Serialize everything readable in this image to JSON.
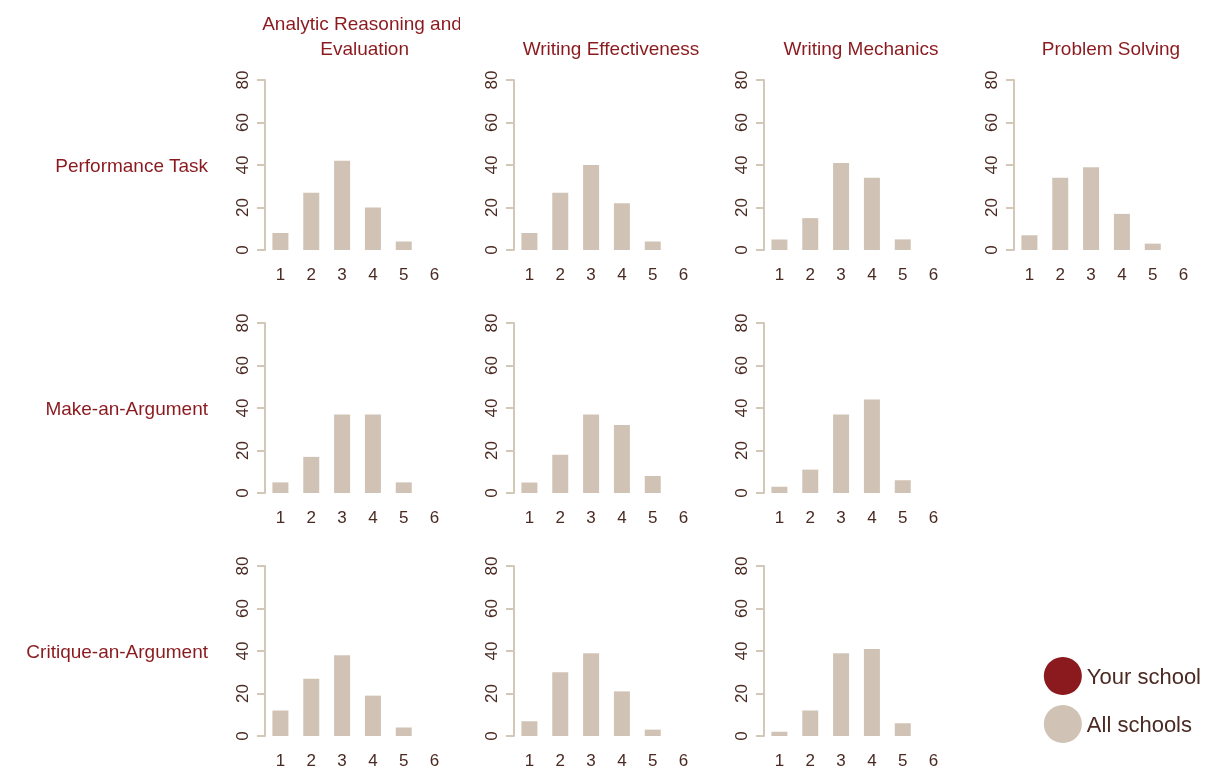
{
  "chart_data": [
    {
      "type": "bar",
      "title": "Analytic Reasoning and Evaluation",
      "ylabel": "Performance Task",
      "categories": [
        "1",
        "2",
        "3",
        "4",
        "5",
        "6"
      ],
      "values": [
        8,
        27,
        42,
        20,
        4,
        0
      ],
      "color": "#d0c3b5",
      "ylim": [
        0,
        80
      ],
      "yticks": [
        0,
        20,
        40,
        60,
        80
      ],
      "grid": false,
      "legend": false
    },
    {
      "type": "bar",
      "title": "Writing Effectiveness",
      "categories": [
        "1",
        "2",
        "3",
        "4",
        "5",
        "6"
      ],
      "values": [
        8,
        27,
        40,
        22,
        4,
        0
      ],
      "color": "#d0c3b5",
      "ylim": [
        0,
        80
      ],
      "yticks": [
        0,
        20,
        40,
        60,
        80
      ],
      "grid": false,
      "legend": false
    },
    {
      "type": "bar",
      "title": "Writing Mechanics",
      "categories": [
        "1",
        "2",
        "3",
        "4",
        "5",
        "6"
      ],
      "values": [
        5,
        15,
        41,
        34,
        5,
        0
      ],
      "color": "#d0c3b5",
      "ylim": [
        0,
        80
      ],
      "yticks": [
        0,
        20,
        40,
        60,
        80
      ],
      "grid": false,
      "legend": false
    },
    {
      "type": "bar",
      "title": "Problem Solving",
      "categories": [
        "1",
        "2",
        "3",
        "4",
        "5",
        "6"
      ],
      "values": [
        7,
        34,
        39,
        17,
        3,
        0
      ],
      "color": "#d0c3b5",
      "ylim": [
        0,
        80
      ],
      "yticks": [
        0,
        20,
        40,
        60,
        80
      ],
      "grid": false,
      "legend": false
    },
    {
      "type": "bar",
      "ylabel": "Make-an-Argument",
      "categories": [
        "1",
        "2",
        "3",
        "4",
        "5",
        "6"
      ],
      "values": [
        5,
        17,
        37,
        37,
        5,
        0
      ],
      "color": "#d0c3b5",
      "ylim": [
        0,
        80
      ],
      "yticks": [
        0,
        20,
        40,
        60,
        80
      ],
      "grid": false,
      "legend": false
    },
    {
      "type": "bar",
      "categories": [
        "1",
        "2",
        "3",
        "4",
        "5",
        "6"
      ],
      "values": [
        5,
        18,
        37,
        32,
        8,
        0
      ],
      "color": "#d0c3b5",
      "ylim": [
        0,
        80
      ],
      "yticks": [
        0,
        20,
        40,
        60,
        80
      ],
      "grid": false,
      "legend": false
    },
    {
      "type": "bar",
      "categories": [
        "1",
        "2",
        "3",
        "4",
        "5",
        "6"
      ],
      "values": [
        3,
        11,
        37,
        44,
        6,
        0
      ],
      "color": "#d0c3b5",
      "ylim": [
        0,
        80
      ],
      "yticks": [
        0,
        20,
        40,
        60,
        80
      ],
      "grid": false,
      "legend": false
    },
    {
      "type": "bar",
      "ylabel": "Critique-an-Argument",
      "categories": [
        "1",
        "2",
        "3",
        "4",
        "5",
        "6"
      ],
      "values": [
        12,
        27,
        38,
        19,
        4,
        0
      ],
      "color": "#d0c3b5",
      "ylim": [
        0,
        80
      ],
      "yticks": [
        0,
        20,
        40,
        60,
        80
      ],
      "grid": false,
      "legend": false
    },
    {
      "type": "bar",
      "categories": [
        "1",
        "2",
        "3",
        "4",
        "5",
        "6"
      ],
      "values": [
        7,
        30,
        39,
        21,
        3,
        0
      ],
      "color": "#d0c3b5",
      "ylim": [
        0,
        80
      ],
      "yticks": [
        0,
        20,
        40,
        60,
        80
      ],
      "grid": false,
      "legend": false
    },
    {
      "type": "bar",
      "categories": [
        "1",
        "2",
        "3",
        "4",
        "5",
        "6"
      ],
      "series": [
        {
          "name": "Your school",
          "color": "#8b1a1f",
          "values": [
            null,
            null,
            null,
            null,
            null,
            null
          ]
        },
        {
          "name": "All schools",
          "color": "#d0c3b5",
          "values": [
            2,
            12,
            39,
            41,
            6,
            0
          ]
        }
      ],
      "ylim": [
        0,
        80
      ],
      "yticks": [
        0,
        20,
        40,
        60,
        80
      ],
      "grid": false,
      "legend": "bottom right"
    }
  ]
}
